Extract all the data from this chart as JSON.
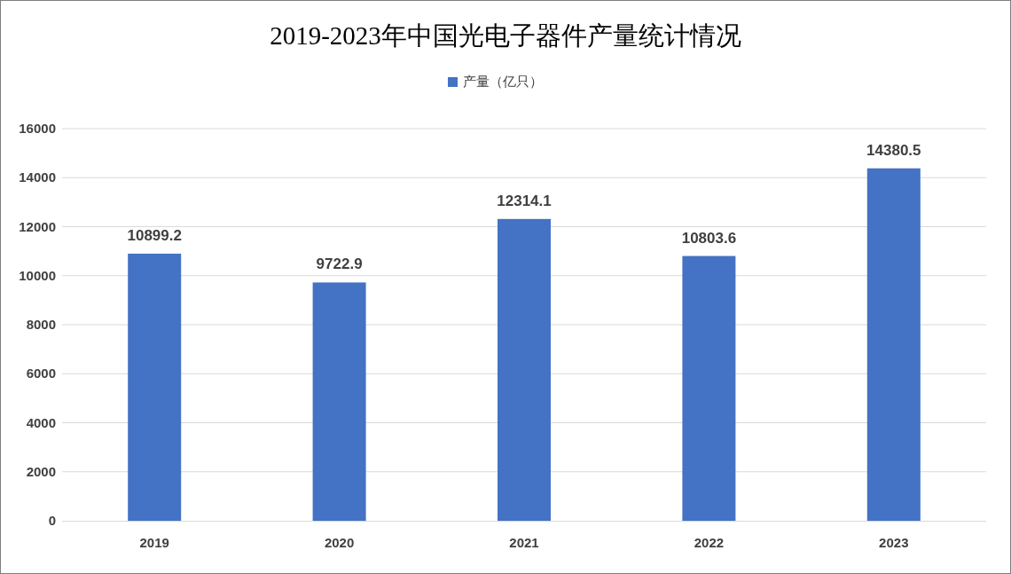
{
  "chart_data": {
    "type": "bar",
    "title": "2019-2023年中国光电子器件产量统计情况",
    "categories": [
      "2019",
      "2020",
      "2021",
      "2022",
      "2023"
    ],
    "series": [
      {
        "name": "产量（亿只）",
        "color": "#4472c4",
        "values": [
          10899.2,
          9722.9,
          12314.1,
          10803.6,
          14380.5
        ]
      }
    ],
    "ylim": [
      0,
      16000
    ],
    "yticks": [
      0,
      2000,
      4000,
      6000,
      8000,
      10000,
      12000,
      14000,
      16000
    ],
    "grid": "y",
    "legend": "top",
    "data_labels": true
  }
}
